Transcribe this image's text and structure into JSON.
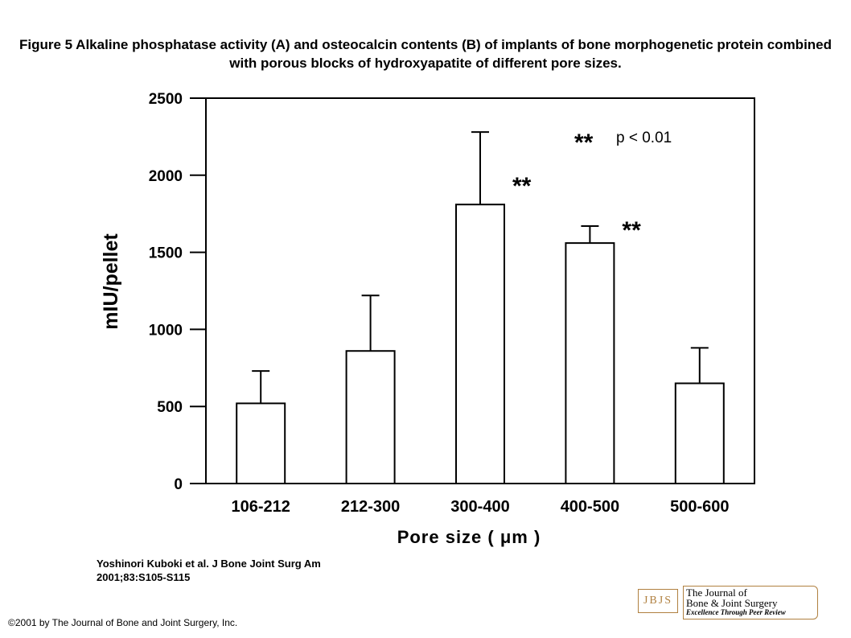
{
  "caption": "Figure 5 Alkaline phosphatase activity (A) and osteocalcin contents (B) of implants of bone morphogenetic protein combined with porous blocks of hydroxyapatite of different pore sizes.",
  "citation_line1": "Yoshinori Kuboki et al. J Bone Joint Surg Am",
  "citation_line2": "2001;83:S105-S115",
  "copyright": "©2001 by The Journal of Bone and Joint Surgery, Inc.",
  "logo": {
    "abbr": "JBJS",
    "line1": "The Journal of",
    "line2": "Bone & Joint Surgery",
    "tagline": "Excellence Through Peer Review"
  },
  "chart_data": {
    "type": "bar",
    "categories": [
      "106-212",
      "212-300",
      "300-400",
      "400-500",
      "500-600"
    ],
    "values": [
      520,
      860,
      1810,
      1560,
      650
    ],
    "errors_upper": [
      730,
      1220,
      2280,
      1670,
      880
    ],
    "significance": [
      "",
      "",
      "**",
      "**",
      ""
    ],
    "legend_note_symbol": "**",
    "legend_note_text": "p < 0.01",
    "xlabel": "Pore size ( μm )",
    "ylabel": "mIU/pellet",
    "ylim": [
      0,
      2500
    ],
    "yticks": [
      0,
      500,
      1000,
      1500,
      2000,
      2500
    ],
    "grid": false
  }
}
